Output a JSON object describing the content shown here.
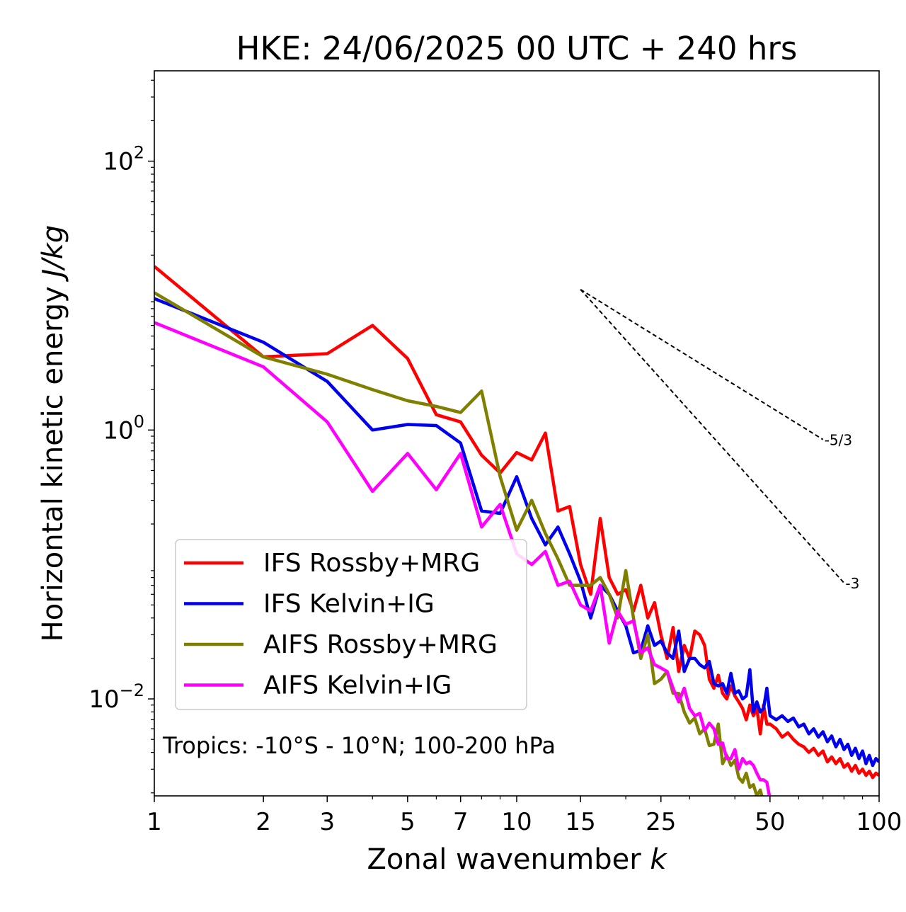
{
  "chart_data": {
    "type": "line",
    "title": "HKE: 24/06/2025 00 UTC + 240 hrs",
    "xlabel": "Zonal wavenumber",
    "xlabel_var": "k",
    "ylabel": "Horizontal kinetic energy",
    "ylabel_unit": "J/kg",
    "xscale": "log",
    "yscale": "log",
    "xlim": [
      1,
      100
    ],
    "ylim": [
      0.0019,
      470
    ],
    "xticks": [
      {
        "value": 1,
        "label": "1"
      },
      {
        "value": 2,
        "label": "2"
      },
      {
        "value": 3,
        "label": "3"
      },
      {
        "value": 5,
        "label": "5"
      },
      {
        "value": 7,
        "label": "7"
      },
      {
        "value": 10,
        "label": "10"
      },
      {
        "value": 15,
        "label": "15"
      },
      {
        "value": 25,
        "label": "25"
      },
      {
        "value": 50,
        "label": "50"
      },
      {
        "value": 100,
        "label": "100"
      }
    ],
    "yticks": [
      {
        "value": 0.01,
        "base": "10",
        "exp": "−2"
      },
      {
        "value": 1,
        "base": "10",
        "exp": "0"
      },
      {
        "value": 100,
        "base": "10",
        "exp": "2"
      }
    ],
    "grid": false,
    "legend_position": "lower-left",
    "annotation": "Tropics: -10°S - 10°N; 100-200 hPa",
    "reference_lines": [
      {
        "label": "-5/3",
        "x": [
          15,
          70
        ],
        "y": [
          11.1,
          0.85
        ]
      },
      {
        "label": "-3",
        "x": [
          15,
          80
        ],
        "y": [
          11.1,
          0.073
        ]
      }
    ],
    "series": [
      {
        "name": "IFS Rossby+MRG",
        "color": "#ff0000",
        "x": [
          1,
          2,
          3,
          4,
          5,
          6,
          7,
          8,
          9,
          10,
          11,
          12,
          13,
          14,
          15,
          16,
          17,
          18,
          19,
          20,
          21,
          22,
          23,
          24,
          25,
          26,
          27,
          28,
          29,
          30,
          31,
          32,
          33,
          34,
          35,
          36,
          37,
          38,
          39,
          40,
          41,
          42,
          43,
          44,
          45,
          46,
          47,
          48,
          49,
          50,
          52,
          54,
          56,
          58,
          60,
          62,
          64,
          66,
          68,
          70,
          72,
          74,
          76,
          78,
          80,
          82,
          84,
          86,
          88,
          90,
          92,
          94,
          96,
          98,
          100
        ],
        "y": [
          16.5,
          3.5,
          3.7,
          6,
          3.4,
          1.3,
          1.15,
          0.65,
          0.48,
          0.68,
          0.6,
          0.95,
          0.25,
          0.27,
          0.1,
          0.06,
          0.22,
          0.08,
          0.06,
          0.065,
          0.045,
          0.07,
          0.04,
          0.052,
          0.03,
          0.02,
          0.034,
          0.016,
          0.025,
          0.02,
          0.032,
          0.03,
          0.025,
          0.014,
          0.012,
          0.015,
          0.011,
          0.01,
          0.0125,
          0.0105,
          0.0095,
          0.0085,
          0.007,
          0.009,
          0.0075,
          0.0085,
          0.0055,
          0.009,
          0.0065,
          0.0065,
          0.006,
          0.0052,
          0.0056,
          0.005,
          0.0046,
          0.0044,
          0.004,
          0.0043,
          0.0038,
          0.0041,
          0.0034,
          0.0037,
          0.0033,
          0.0036,
          0.0031,
          0.0033,
          0.0029,
          0.0032,
          0.0028,
          0.003,
          0.0027,
          0.0029,
          0.0026,
          0.0028,
          0.0027
        ]
      },
      {
        "name": "IFS Kelvin+IG",
        "color": "#0000ee",
        "x": [
          1,
          2,
          3,
          4,
          5,
          6,
          7,
          8,
          9,
          10,
          11,
          12,
          13,
          14,
          15,
          16,
          17,
          18,
          19,
          20,
          21,
          22,
          23,
          24,
          25,
          26,
          27,
          28,
          29,
          30,
          31,
          32,
          33,
          34,
          35,
          36,
          37,
          38,
          39,
          40,
          41,
          42,
          43,
          44,
          45,
          46,
          47,
          48,
          49,
          50,
          52,
          54,
          56,
          58,
          60,
          62,
          64,
          66,
          68,
          70,
          72,
          74,
          76,
          78,
          80,
          82,
          84,
          86,
          88,
          90,
          92,
          94,
          96,
          98,
          100
        ],
        "y": [
          9.5,
          4.5,
          2.3,
          1.0,
          1.1,
          1.08,
          0.8,
          0.25,
          0.24,
          0.45,
          0.22,
          0.14,
          0.19,
          0.12,
          0.075,
          0.04,
          0.07,
          0.06,
          0.045,
          0.035,
          0.022,
          0.023,
          0.035,
          0.025,
          0.027,
          0.022,
          0.02,
          0.032,
          0.016,
          0.02,
          0.02,
          0.018,
          0.017,
          0.019,
          0.013,
          0.0125,
          0.013,
          0.011,
          0.0155,
          0.011,
          0.0115,
          0.01,
          0.0105,
          0.0165,
          0.008,
          0.0095,
          0.008,
          0.0085,
          0.012,
          0.0075,
          0.007,
          0.0075,
          0.0068,
          0.0072,
          0.0062,
          0.0065,
          0.0055,
          0.006,
          0.0052,
          0.0057,
          0.0048,
          0.0053,
          0.0044,
          0.005,
          0.0042,
          0.0046,
          0.0038,
          0.0043,
          0.0036,
          0.0041,
          0.0033,
          0.0038,
          0.0032,
          0.0036,
          0.0034
        ]
      },
      {
        "name": "AIFS Rossby+MRG",
        "color": "#808000",
        "x": [
          1,
          2,
          3,
          4,
          5,
          6,
          7,
          8,
          9,
          10,
          11,
          12,
          13,
          14,
          15,
          16,
          17,
          18,
          19,
          20,
          21,
          22,
          23,
          24,
          25,
          26,
          27,
          28,
          29,
          30,
          31,
          32,
          33,
          34,
          35,
          36,
          37,
          38,
          39,
          40,
          41,
          42,
          43,
          44,
          45,
          46,
          47,
          48,
          49,
          50
        ],
        "y": [
          10.5,
          3.5,
          2.6,
          2.0,
          1.65,
          1.5,
          1.35,
          1.95,
          0.45,
          0.18,
          0.3,
          0.17,
          0.11,
          0.07,
          0.07,
          0.07,
          0.08,
          0.06,
          0.04,
          0.09,
          0.04,
          0.02,
          0.03,
          0.013,
          0.014,
          0.016,
          0.011,
          0.011,
          0.008,
          0.0066,
          0.0072,
          0.0055,
          0.006,
          0.0045,
          0.0046,
          0.0065,
          0.0033,
          0.0038,
          0.0032,
          0.0035,
          0.0026,
          0.0024,
          0.0028,
          0.0022,
          0.0023,
          0.0019,
          0.0021,
          0.0017,
          0.0015,
          0.0012
        ]
      },
      {
        "name": "AIFS Kelvin+IG",
        "color": "#ff00ff",
        "x": [
          1,
          2,
          3,
          4,
          5,
          6,
          7,
          8,
          9,
          10,
          11,
          12,
          13,
          14,
          15,
          16,
          17,
          18,
          19,
          20,
          21,
          22,
          23,
          24,
          25,
          26,
          27,
          28,
          29,
          30,
          31,
          32,
          33,
          34,
          35,
          36,
          37,
          38,
          39,
          40,
          41,
          42,
          43,
          44,
          45,
          46,
          47,
          48,
          49,
          50
        ],
        "y": [
          6.3,
          2.95,
          1.15,
          0.35,
          0.67,
          0.36,
          0.67,
          0.19,
          0.28,
          0.12,
          0.1,
          0.125,
          0.07,
          0.075,
          0.05,
          0.045,
          0.07,
          0.026,
          0.045,
          0.036,
          0.038,
          0.022,
          0.024,
          0.018,
          0.017,
          0.016,
          0.012,
          0.0095,
          0.012,
          0.0085,
          0.0075,
          0.0078,
          0.0058,
          0.0066,
          0.006,
          0.0046,
          0.0047,
          0.0036,
          0.0036,
          0.0042,
          0.003,
          0.0036,
          0.0033,
          0.0034,
          0.0032,
          0.0028,
          0.0025,
          0.0025,
          0.0024,
          0.0018
        ]
      }
    ]
  }
}
